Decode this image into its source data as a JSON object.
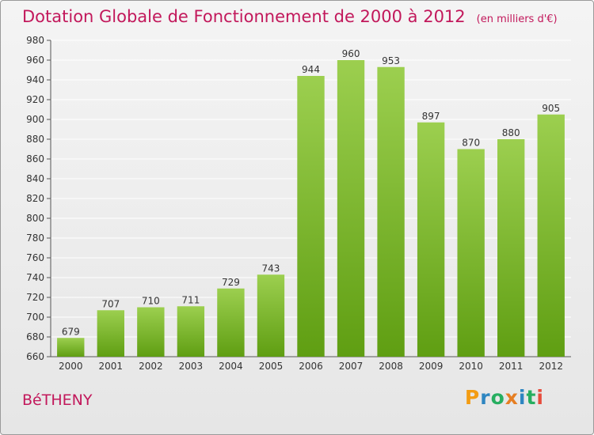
{
  "title": "Dotation Globale de Fonctionnement de 2000 à 2012",
  "subtitle": "(en milliers d'€)",
  "commune": "BéTHENY",
  "logo": {
    "letters": [
      "P",
      "r",
      "o",
      "x",
      "i",
      "t",
      "i"
    ],
    "colors": [
      "#f39c12",
      "#2e86c1",
      "#27ae60",
      "#e67e22",
      "#2e86c1",
      "#27ae60",
      "#e74c3c"
    ]
  },
  "colors": {
    "bar_light": "#9ccf4f",
    "bar_dark": "#5f9e12",
    "title": "#c2185b"
  },
  "chart_data": {
    "type": "bar",
    "categories": [
      "2000",
      "2001",
      "2002",
      "2003",
      "2004",
      "2005",
      "2006",
      "2007",
      "2008",
      "2009",
      "2010",
      "2011",
      "2012"
    ],
    "values": [
      679,
      707,
      710,
      711,
      729,
      743,
      944,
      960,
      953,
      897,
      870,
      880,
      905
    ],
    "ylim": [
      660,
      980
    ],
    "yticks": [
      660,
      680,
      700,
      720,
      740,
      760,
      780,
      800,
      820,
      840,
      860,
      880,
      900,
      920,
      940,
      960,
      980
    ],
    "grid": true,
    "xlabel": "",
    "ylabel": ""
  }
}
